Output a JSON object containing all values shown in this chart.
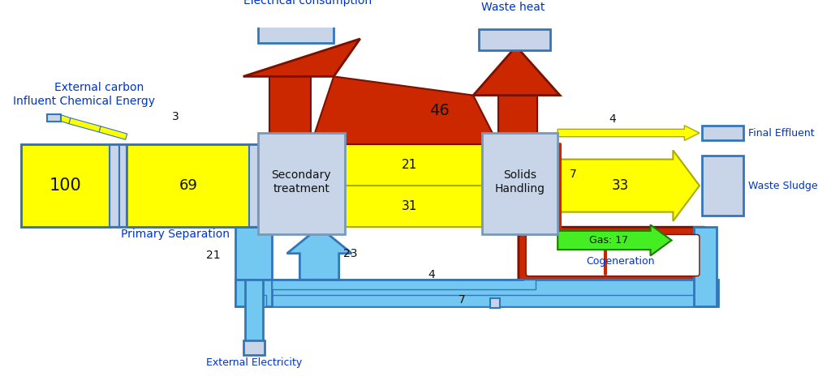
{
  "colors": {
    "yellow": "#FFFF00",
    "yellow_edge": "#AAAA00",
    "red_flow": "#CC2800",
    "red_edge": "#7A1000",
    "blue_light": "#72C8F0",
    "blue_edge": "#3377BB",
    "blue_dark": "#1A3D99",
    "green": "#44EE22",
    "green_edge": "#227700",
    "gray_box": "#C8D4E8",
    "gray_edge": "#7799BB",
    "text_blue": "#0033CC",
    "text_black": "#111111",
    "white": "#FFFFFF"
  },
  "labels": {
    "external_carbon": "External carbon",
    "influent": "Influent Chemical Energy",
    "primary_sep": "Primary Separation",
    "secondary": "Secondary\ntreatment",
    "solids": "Solids\nHandling",
    "cogeneration": "Cogeneration",
    "electrical_consumption": "Electrical consumption",
    "waste_heat": "Waste heat",
    "final_effluent": "Final Effluent",
    "waste_sludge": "Waste Sludge",
    "external_electricity": "External Electricity",
    "gas": "Gas: 17"
  },
  "values": {
    "v100": "100",
    "v69": "69",
    "v21u": "21",
    "v31": "31",
    "v33": "33",
    "v46": "46",
    "v7r": "7",
    "v4e": "4",
    "v3": "3",
    "v23": "23",
    "v21l": "21",
    "v4l": "4",
    "v7l": "7"
  }
}
